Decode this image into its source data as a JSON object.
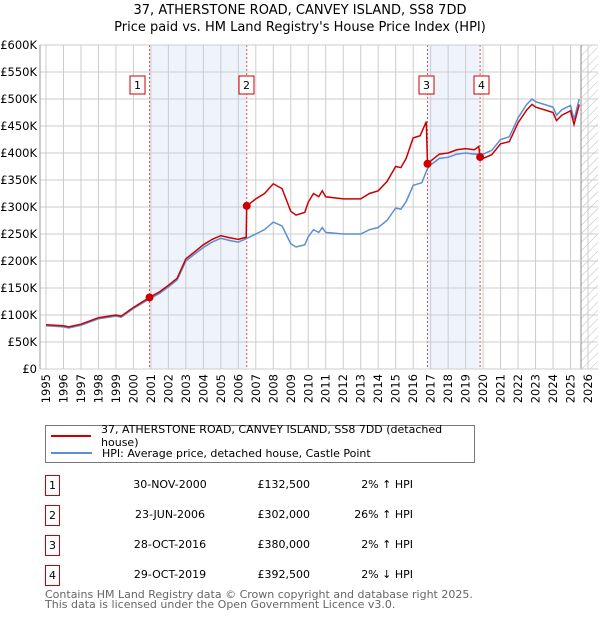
{
  "title": "37, ATHERSTONE ROAD, CANVEY ISLAND, SS8 7DD",
  "subtitle": "Price paid vs. HM Land Registry's House Price Index (HPI)",
  "chart_data": {
    "type": "line",
    "xlim": [
      1995,
      2026.3
    ],
    "ylim": [
      0,
      600000
    ],
    "grid": true,
    "x_ticks": [
      "1995",
      "1996",
      "1997",
      "1998",
      "1999",
      "2000",
      "2001",
      "2002",
      "2003",
      "2004",
      "2005",
      "2006",
      "2007",
      "2008",
      "2009",
      "2010",
      "2011",
      "2012",
      "2013",
      "2014",
      "2015",
      "2016",
      "2017",
      "2018",
      "2019",
      "2020",
      "2021",
      "2022",
      "2023",
      "2024",
      "2025",
      "2026"
    ],
    "y_ticks": [
      {
        "value": 0,
        "label": "£0"
      },
      {
        "value": 50000,
        "label": "£50K"
      },
      {
        "value": 100000,
        "label": "£100K"
      },
      {
        "value": 150000,
        "label": "£150K"
      },
      {
        "value": 200000,
        "label": "£200K"
      },
      {
        "value": 250000,
        "label": "£250K"
      },
      {
        "value": 300000,
        "label": "£300K"
      },
      {
        "value": 350000,
        "label": "£350K"
      },
      {
        "value": 400000,
        "label": "£400K"
      },
      {
        "value": 450000,
        "label": "£450K"
      },
      {
        "value": 500000,
        "label": "£500K"
      },
      {
        "value": 550000,
        "label": "£550K"
      },
      {
        "value": 600000,
        "label": "£600K"
      }
    ],
    "forecast_hatch_from": 2025.6,
    "shaded_periods": [
      [
        2000.92,
        2006.48
      ],
      [
        2016.82,
        2019.83
      ]
    ],
    "series": [
      {
        "name": "37, ATHERSTONE ROAD, CANVEY ISLAND, SS8 7DD (detached house)",
        "color": "#cc0000",
        "points": [
          [
            1995,
            82
          ],
          [
            1996,
            80
          ],
          [
            1996.3,
            78
          ],
          [
            1997,
            83
          ],
          [
            1998,
            95
          ],
          [
            1999,
            100
          ],
          [
            1999.3,
            98
          ],
          [
            2000,
            114
          ],
          [
            2000.92,
            132.5
          ],
          [
            2001.5,
            143
          ],
          [
            2002,
            155
          ],
          [
            2002.5,
            168
          ],
          [
            2003,
            204
          ],
          [
            2003.5,
            217
          ],
          [
            2004,
            230
          ],
          [
            2004.5,
            240
          ],
          [
            2005,
            247
          ],
          [
            2005.5,
            243
          ],
          [
            2006,
            240
          ],
          [
            2006.45,
            244
          ],
          [
            2006.48,
            302
          ],
          [
            2007,
            315
          ],
          [
            2007.5,
            325
          ],
          [
            2008,
            343
          ],
          [
            2008.5,
            334
          ],
          [
            2009,
            292
          ],
          [
            2009.3,
            285
          ],
          [
            2009.8,
            290
          ],
          [
            2010,
            309
          ],
          [
            2010.3,
            325
          ],
          [
            2010.6,
            319
          ],
          [
            2010.8,
            330
          ],
          [
            2011,
            319
          ],
          [
            2012,
            315
          ],
          [
            2012.5,
            315
          ],
          [
            2013,
            315
          ],
          [
            2013.5,
            325
          ],
          [
            2014,
            330
          ],
          [
            2014.5,
            347
          ],
          [
            2015,
            375
          ],
          [
            2015.3,
            373
          ],
          [
            2015.6,
            390
          ],
          [
            2016,
            428
          ],
          [
            2016.4,
            432
          ],
          [
            2016.75,
            458
          ],
          [
            2016.82,
            380
          ],
          [
            2017,
            385
          ],
          [
            2017.5,
            398
          ],
          [
            2018,
            400
          ],
          [
            2018.5,
            406
          ],
          [
            2019,
            408
          ],
          [
            2019.5,
            406
          ],
          [
            2019.75,
            412
          ],
          [
            2019.83,
            392.5
          ],
          [
            2020,
            390
          ],
          [
            2020.5,
            397
          ],
          [
            2021,
            417
          ],
          [
            2021.5,
            421
          ],
          [
            2022,
            456
          ],
          [
            2022.5,
            480
          ],
          [
            2022.8,
            490
          ],
          [
            2023,
            485
          ],
          [
            2024,
            475
          ],
          [
            2024.2,
            460
          ],
          [
            2024.5,
            470
          ],
          [
            2025,
            478
          ],
          [
            2025.2,
            453
          ],
          [
            2025.5,
            490
          ]
        ]
      },
      {
        "name": "HPI: Average price, detached house, Castle Point",
        "color": "#5b8fd4",
        "points": [
          [
            1995,
            80
          ],
          [
            1996,
            78
          ],
          [
            1996.3,
            76
          ],
          [
            1997,
            81
          ],
          [
            1998,
            93
          ],
          [
            1999,
            98
          ],
          [
            1999.3,
            96
          ],
          [
            2000,
            112
          ],
          [
            2000.92,
            130
          ],
          [
            2001.5,
            140
          ],
          [
            2002,
            152
          ],
          [
            2002.5,
            165
          ],
          [
            2003,
            200
          ],
          [
            2003.5,
            213
          ],
          [
            2004,
            225
          ],
          [
            2004.5,
            235
          ],
          [
            2005,
            242
          ],
          [
            2005.5,
            238
          ],
          [
            2006,
            235
          ],
          [
            2006.5,
            242
          ],
          [
            2007,
            250
          ],
          [
            2007.5,
            258
          ],
          [
            2008,
            272
          ],
          [
            2008.5,
            265
          ],
          [
            2009,
            232
          ],
          [
            2009.3,
            226
          ],
          [
            2009.8,
            230
          ],
          [
            2010,
            245
          ],
          [
            2010.3,
            258
          ],
          [
            2010.6,
            253
          ],
          [
            2010.8,
            262
          ],
          [
            2011,
            253
          ],
          [
            2012,
            250
          ],
          [
            2012.5,
            250
          ],
          [
            2013,
            250
          ],
          [
            2013.5,
            258
          ],
          [
            2014,
            262
          ],
          [
            2014.5,
            275
          ],
          [
            2015,
            298
          ],
          [
            2015.3,
            296
          ],
          [
            2015.6,
            310
          ],
          [
            2016,
            340
          ],
          [
            2016.5,
            345
          ],
          [
            2016.8,
            370
          ],
          [
            2017,
            378
          ],
          [
            2017.5,
            390
          ],
          [
            2018,
            392
          ],
          [
            2018.5,
            398
          ],
          [
            2019,
            400
          ],
          [
            2019.5,
            398
          ],
          [
            2020,
            398
          ],
          [
            2020.5,
            405
          ],
          [
            2021,
            425
          ],
          [
            2021.5,
            430
          ],
          [
            2022,
            465
          ],
          [
            2022.5,
            490
          ],
          [
            2022.8,
            500
          ],
          [
            2023,
            495
          ],
          [
            2024,
            485
          ],
          [
            2024.2,
            470
          ],
          [
            2024.5,
            480
          ],
          [
            2025,
            488
          ],
          [
            2025.2,
            462
          ],
          [
            2025.5,
            500
          ]
        ]
      }
    ],
    "sales": [
      {
        "label": "1",
        "x": 2000.92,
        "price": 132500
      },
      {
        "label": "2",
        "x": 2006.48,
        "price": 302000
      },
      {
        "label": "3",
        "x": 2016.82,
        "price": 380000
      },
      {
        "label": "4",
        "x": 2019.83,
        "price": 392500
      }
    ]
  },
  "legend": {
    "property": "37, ATHERSTONE ROAD, CANVEY ISLAND, SS8 7DD (detached house)",
    "hpi": "HPI: Average price, detached house, Castle Point"
  },
  "transactions": [
    {
      "num": "1",
      "date": "30-NOV-2000",
      "price": "£132,500",
      "hpi": "2% ↑ HPI"
    },
    {
      "num": "2",
      "date": "23-JUN-2006",
      "price": "£302,000",
      "hpi": "26% ↑ HPI"
    },
    {
      "num": "3",
      "date": "28-OCT-2016",
      "price": "£380,000",
      "hpi": "2% ↑ HPI"
    },
    {
      "num": "4",
      "date": "29-OCT-2019",
      "price": "£392,500",
      "hpi": "2% ↓ HPI"
    }
  ],
  "footer": {
    "line1": "Contains HM Land Registry data © Crown copyright and database right 2025.",
    "line2": "This data is licensed under the Open Government Licence v3.0."
  }
}
